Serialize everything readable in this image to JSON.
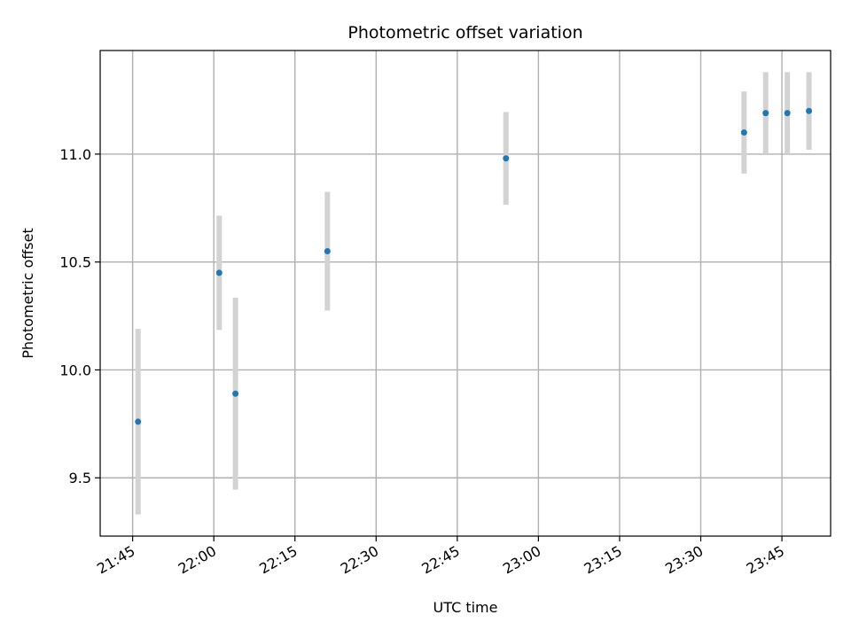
{
  "chart_data": {
    "type": "scatter",
    "title": "Photometric offset variation",
    "xlabel": "UTC time",
    "ylabel": "Photometric offset",
    "x_ticks": [
      "21:45",
      "22:00",
      "22:15",
      "22:30",
      "22:45",
      "23:00",
      "23:15",
      "23:30",
      "23:45"
    ],
    "y_ticks": [
      "9.5",
      "10.0",
      "10.5",
      "11.0"
    ],
    "xlim": [
      "21:39",
      "23:54"
    ],
    "ylim": [
      9.23,
      11.48
    ],
    "grid": true,
    "point_color": "#1f77b4",
    "errorbar_color": "#d3d3d3",
    "points": [
      {
        "x": "21:46",
        "y": 9.76,
        "err": 0.43
      },
      {
        "x": "22:01",
        "y": 10.45,
        "err": 0.265
      },
      {
        "x": "22:04",
        "y": 9.89,
        "err": 0.445
      },
      {
        "x": "22:21",
        "y": 10.55,
        "err": 0.275
      },
      {
        "x": "22:54",
        "y": 10.98,
        "err": 0.215
      },
      {
        "x": "23:38",
        "y": 11.1,
        "err": 0.19
      },
      {
        "x": "23:42",
        "y": 11.19,
        "err": 0.19
      },
      {
        "x": "23:46",
        "y": 11.19,
        "err": 0.19
      },
      {
        "x": "23:50",
        "y": 11.2,
        "err": 0.18
      }
    ]
  }
}
